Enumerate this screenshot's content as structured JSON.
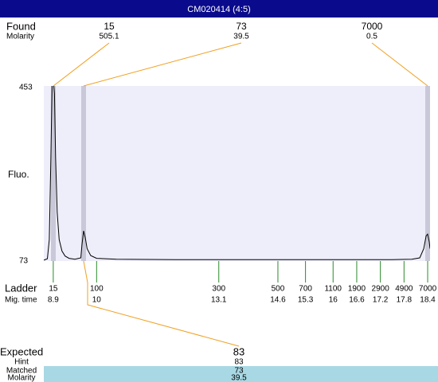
{
  "header": {
    "title": "CM020414 (4:5)"
  },
  "found": {
    "label": "Found",
    "molarity_label": "Molarity",
    "peaks": [
      {
        "size": 15,
        "molarity": 505.1
      },
      {
        "size": 73,
        "molarity": 39.5
      },
      {
        "size": 7000,
        "molarity": 0.5
      }
    ]
  },
  "chart_data": {
    "type": "line",
    "y_label": "Fluo.",
    "x": [
      8.66,
      8.75,
      8.8,
      8.84,
      8.87,
      8.9,
      8.93,
      8.96,
      9.0,
      9.05,
      9.12,
      9.2,
      9.3,
      9.45,
      9.6,
      9.63,
      9.67,
      9.71,
      9.76,
      9.85,
      10.0,
      10.5,
      12,
      14,
      16,
      17.5,
      18.0,
      18.2,
      18.3,
      18.36,
      18.4,
      18.44,
      18.46
    ],
    "series": [
      {
        "color": "#000000",
        "values": [
          75,
          78,
          120,
          300,
          460,
          470,
          440,
          300,
          180,
          120,
          95,
          84,
          79,
          77,
          80,
          110,
          139,
          125,
          100,
          85,
          79,
          77,
          76,
          76,
          76,
          76,
          77,
          80,
          100,
          128,
          132,
          115,
          100
        ]
      }
    ],
    "xlim": [
      8.66,
      18.46
    ],
    "ylim": [
      73,
      453
    ],
    "yticks": [
      453,
      73
    ]
  },
  "ladder": {
    "label": "Ladder",
    "mig_label": "Mig. time",
    "sizes": [
      15,
      100,
      300,
      500,
      700,
      1100,
      1900,
      2900,
      4900,
      7000
    ],
    "mig_times": [
      8.9,
      10,
      13.1,
      14.6,
      15.3,
      16,
      16.6,
      17.2,
      17.8,
      18.4
    ]
  },
  "expected": {
    "label": "Expected",
    "value": 83,
    "hint_label": "Hint",
    "hint": 83,
    "matched_label": "Matched",
    "matched": 73,
    "molarity_label": "Molarity",
    "molarity": 39.5
  }
}
